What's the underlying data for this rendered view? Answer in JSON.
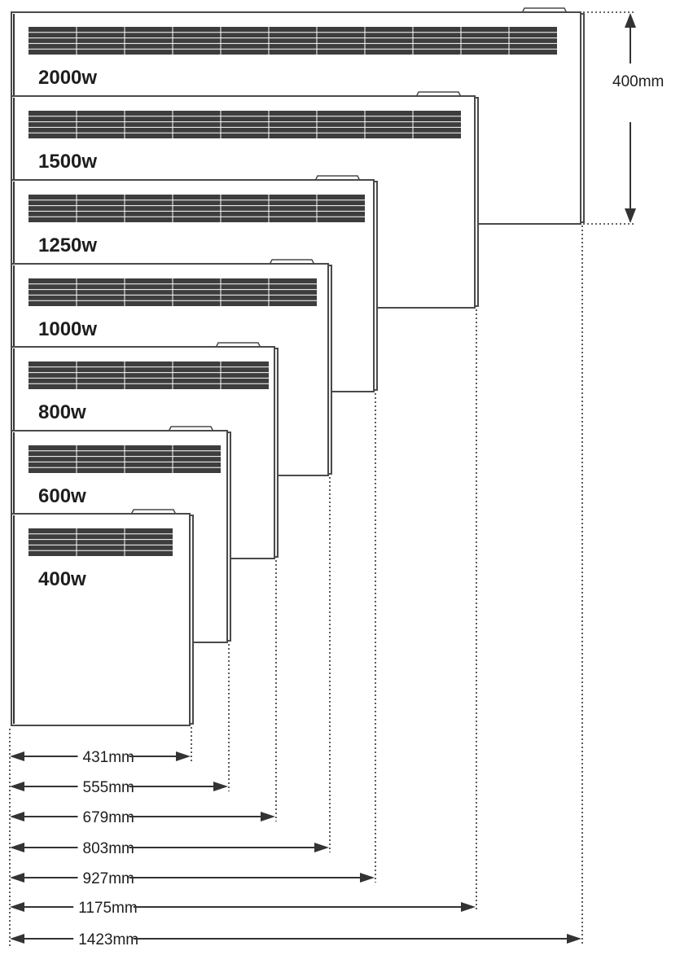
{
  "heaters": [
    {
      "power": "400w",
      "width": "431mm"
    },
    {
      "power": "600w",
      "width": "555mm"
    },
    {
      "power": "800w",
      "width": "679mm"
    },
    {
      "power": "1000w",
      "width": "803mm"
    },
    {
      "power": "1250w",
      "width": "927mm"
    },
    {
      "power": "1500w",
      "width": "1175mm"
    },
    {
      "power": "2000w",
      "width": "1423mm"
    }
  ],
  "height_label": "400mm",
  "colors": {
    "outline": "#4a4a4a",
    "grille": "#3d3d3d",
    "text": "#1e1e1e"
  }
}
